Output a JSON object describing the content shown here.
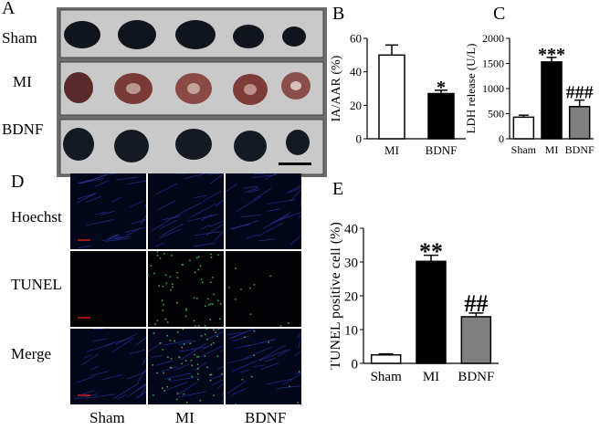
{
  "panels": {
    "a": {
      "letter": "A",
      "rows": [
        "Sham",
        "MI",
        "BDNF"
      ]
    },
    "b": {
      "letter": "B"
    },
    "c": {
      "letter": "C"
    },
    "d": {
      "letter": "D",
      "rows": [
        "Hoechst",
        "TUNEL",
        "Merge"
      ],
      "columns": [
        "Sham",
        "MI",
        "BDNF"
      ]
    },
    "e": {
      "letter": "E"
    }
  },
  "chart_data": [
    {
      "id": "B",
      "type": "bar",
      "categories": [
        "MI",
        "BDNF"
      ],
      "values": [
        50,
        27
      ],
      "errors": [
        6,
        2
      ],
      "fills": [
        "#ffffff",
        "#000000"
      ],
      "annotations": [
        "",
        "*"
      ],
      "ylabel": "IA/AAR (%)",
      "ylim": [
        0,
        60
      ],
      "yticks": [
        0,
        20,
        40,
        60
      ],
      "grid": false
    },
    {
      "id": "C",
      "type": "bar",
      "categories": [
        "Sham",
        "MI",
        "BDNF"
      ],
      "values": [
        430,
        1530,
        640
      ],
      "errors": [
        40,
        90,
        130
      ],
      "fills": [
        "#ffffff",
        "#000000",
        "#808080"
      ],
      "annotations": [
        "",
        "***",
        "###"
      ],
      "ylabel": "LDH release (U/L)",
      "ylim": [
        0,
        2000
      ],
      "yticks": [
        0,
        500,
        1000,
        1500,
        2000
      ],
      "grid": false
    },
    {
      "id": "E",
      "type": "bar",
      "categories": [
        "Sham",
        "MI",
        "BDNF"
      ],
      "values": [
        2.5,
        30.2,
        13.8
      ],
      "errors": [
        0.3,
        1.8,
        1.1
      ],
      "fills": [
        "#ffffff",
        "#000000",
        "#808080"
      ],
      "annotations": [
        "",
        "**",
        "##"
      ],
      "ylabel": "TUNEL positive cell (%)",
      "ylim": [
        0,
        40
      ],
      "yticks": [
        0,
        10,
        20,
        30,
        40
      ],
      "grid": false
    }
  ]
}
